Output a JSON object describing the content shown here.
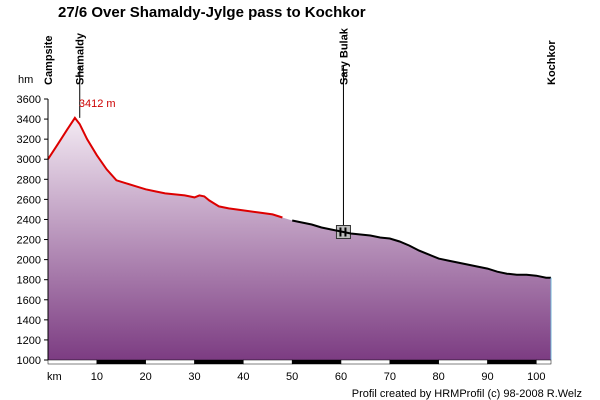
{
  "chart_data": {
    "type": "area",
    "title": "27/6 Over Shamaldy-Jylge pass to Kochkor",
    "x_unit": "km",
    "y_unit": "hm",
    "xlim": [
      0,
      103
    ],
    "ylim": [
      1000,
      3600
    ],
    "x_ticks": [
      10,
      20,
      30,
      40,
      50,
      60,
      70,
      80,
      90,
      100
    ],
    "y_ticks": [
      1000,
      1200,
      1400,
      1600,
      1800,
      2000,
      2200,
      2400,
      2600,
      2800,
      3000,
      3200,
      3400,
      3600
    ],
    "grid": false,
    "profile": {
      "x": [
        0,
        2,
        4,
        5.5,
        6.5,
        8,
        10,
        12,
        14,
        16,
        18,
        20,
        22,
        24,
        26,
        28,
        29,
        30,
        31,
        32,
        33,
        34,
        35,
        37,
        40,
        43,
        46,
        48,
        50,
        52,
        54,
        56,
        58,
        60,
        62,
        64,
        66,
        68,
        70,
        72,
        74,
        76,
        78,
        80,
        82,
        84,
        86,
        88,
        90,
        92,
        94,
        96,
        98,
        100,
        102,
        103
      ],
      "y": [
        3000,
        3150,
        3300,
        3412,
        3350,
        3200,
        3040,
        2900,
        2790,
        2760,
        2730,
        2700,
        2680,
        2660,
        2650,
        2640,
        2630,
        2620,
        2640,
        2630,
        2590,
        2560,
        2530,
        2510,
        2490,
        2470,
        2450,
        2420,
        2390,
        2370,
        2350,
        2320,
        2300,
        2280,
        2260,
        2250,
        2240,
        2220,
        2210,
        2180,
        2140,
        2090,
        2050,
        2010,
        1990,
        1970,
        1950,
        1930,
        1910,
        1880,
        1860,
        1850,
        1850,
        1840,
        1820,
        1820
      ]
    },
    "climb_end_km": 49,
    "peak": {
      "x": 5.5,
      "y": 3412,
      "label": "3412 m"
    },
    "waypoints": [
      {
        "name": "Campsite",
        "x": 0
      },
      {
        "name": "Shamaldy",
        "x": 6.5
      },
      {
        "name": "Sary Bulak",
        "x": 60.5,
        "marker": true,
        "marker_y": 2270
      },
      {
        "name": "Kochkor",
        "x": 103
      }
    ],
    "credit": "Profil created by HRMProfil (c) 98-2008 R.Welz",
    "colors": {
      "climb_line": "#dd0000",
      "descent_line": "#000000",
      "fill_top": "#f3eaf3",
      "fill_bottom": "#7c3c82"
    }
  }
}
